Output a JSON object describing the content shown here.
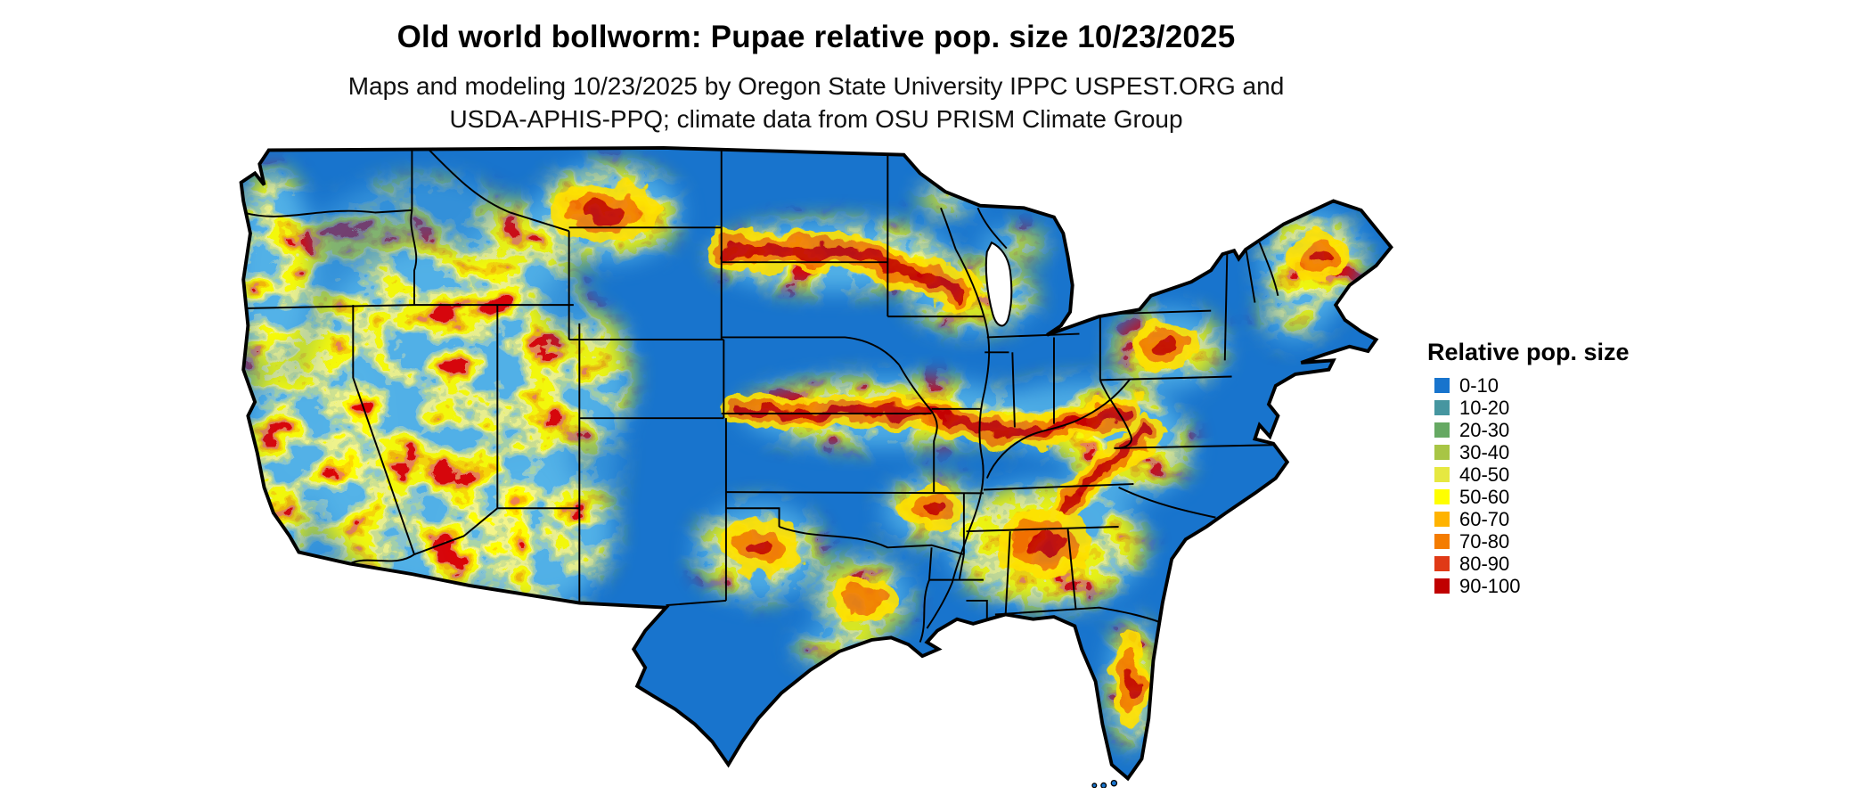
{
  "page": {
    "title": "Old world bollworm: Pupae relative pop. size 10/23/2025",
    "subtitle_line1": "Maps and modeling 10/23/2025 by Oregon State University IPPC USPEST.ORG and",
    "subtitle_line2": "USDA-APHIS-PPQ; climate data from OSU PRISM Climate Group"
  },
  "legend": {
    "title": "Relative pop. size",
    "items": [
      {
        "label": "0-10",
        "color": "#1874CD"
      },
      {
        "label": "10-20",
        "color": "#4696A0"
      },
      {
        "label": "20-30",
        "color": "#66A963"
      },
      {
        "label": "30-40",
        "color": "#A8C545"
      },
      {
        "label": "40-50",
        "color": "#E6E841"
      },
      {
        "label": "50-60",
        "color": "#FFFF00"
      },
      {
        "label": "60-70",
        "color": "#FFB300"
      },
      {
        "label": "70-80",
        "color": "#F47C00"
      },
      {
        "label": "80-90",
        "color": "#E03A16"
      },
      {
        "label": "90-100",
        "color": "#C00000"
      }
    ]
  },
  "map": {
    "base_color": "#1874CD",
    "border_color": "#000000",
    "water_color": "#FFFFFF"
  }
}
